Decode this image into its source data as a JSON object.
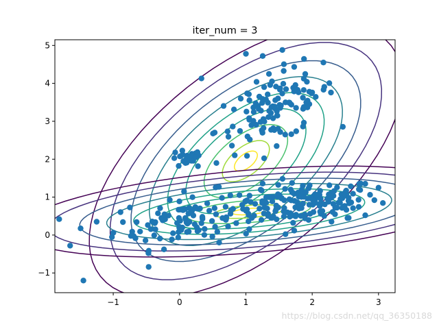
{
  "chart_data": {
    "type": "scatter",
    "title": "iter_num = 3",
    "xlabel": "",
    "ylabel": "",
    "xlim": [
      -1.88,
      3.25
    ],
    "ylim": [
      -1.52,
      5.15
    ],
    "x_ticks": [
      -1,
      0,
      1,
      2,
      3
    ],
    "y_ticks": [
      -1,
      0,
      1,
      2,
      3,
      4,
      5
    ],
    "grid": false,
    "legend": "none",
    "point_color": "#1f77b4",
    "contour_colormap": [
      "#440154",
      "#46327e",
      "#365c8d",
      "#277f8e",
      "#1fa187",
      "#4ac16d",
      "#a0da39",
      "#fde725"
    ],
    "scatter_clusters": [
      {
        "center": [
          1.9,
          0.85
        ],
        "std": [
          0.55,
          0.28
        ],
        "corr": 0.25,
        "count": 160
      },
      {
        "center": [
          0.1,
          0.4
        ],
        "std": [
          0.55,
          0.35
        ],
        "corr": 0.3,
        "count": 110
      },
      {
        "center": [
          1.45,
          3.35
        ],
        "std": [
          0.45,
          0.55
        ],
        "corr": 0.55,
        "count": 120
      },
      {
        "center": [
          0.1,
          2.0
        ],
        "std": [
          0.12,
          0.12
        ],
        "corr": 0.0,
        "count": 25
      }
    ],
    "scatter_extra_points": [
      {
        "x": -1.45,
        "y": -1.2
      },
      {
        "x": 1.0,
        "y": 4.78
      },
      {
        "x": 1.55,
        "y": 4.88
      },
      {
        "x": 0.33,
        "y": 4.13
      },
      {
        "x": 3.0,
        "y": 1.25
      },
      {
        "x": 2.8,
        "y": 0.52
      },
      {
        "x": -1.65,
        "y": -0.28
      },
      {
        "x": -1.25,
        "y": 0.35
      },
      {
        "x": 2.55,
        "y": 0.45
      }
    ],
    "gaussian_components": [
      {
        "name": "",
        "mean": [
          1.0,
          1.95
        ],
        "cov": [
          [
            0.62,
            0.55
          ],
          [
            0.55,
            1.45
          ]
        ]
      },
      {
        "name": "",
        "mean": [
          1.05,
          0.62
        ],
        "cov": [
          [
            1.35,
            0.19
          ],
          [
            0.19,
            0.16
          ]
        ]
      }
    ],
    "contour_levels_sigma": [
      3.0,
      2.6,
      2.2,
      1.85,
      1.5,
      1.15,
      0.8,
      0.45,
      0.22
    ]
  },
  "watermark": "https://blog.csdn.net/qq_36350188"
}
